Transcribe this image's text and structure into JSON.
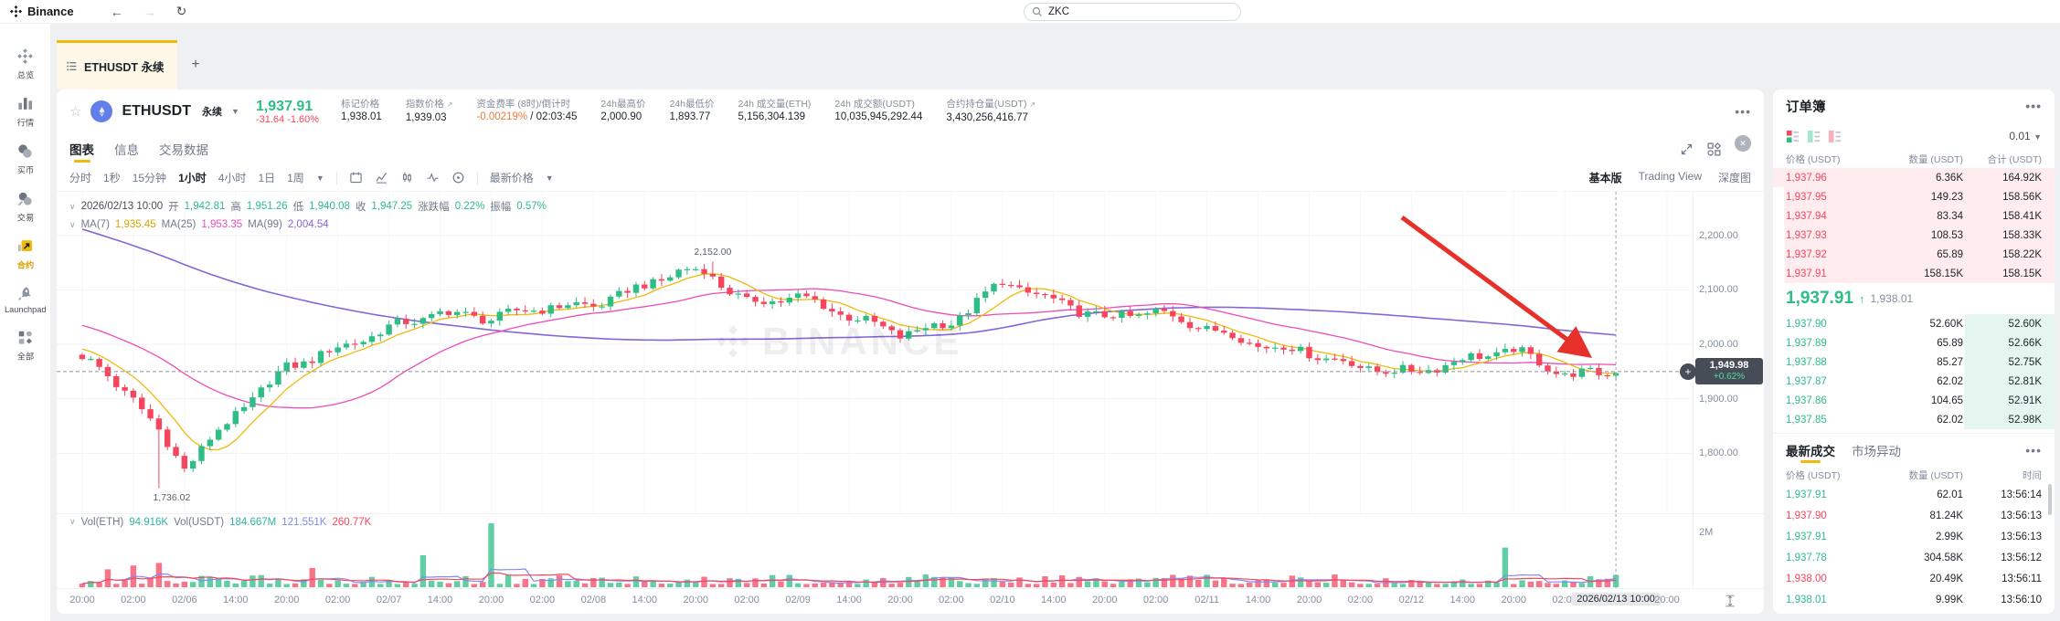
{
  "topbar": {
    "brand": "Binance",
    "search_value": "ZKC"
  },
  "sidebar": {
    "items": [
      {
        "label": "总览"
      },
      {
        "label": "行情"
      },
      {
        "label": "买币"
      },
      {
        "label": "交易"
      },
      {
        "label": "合约"
      },
      {
        "label": "Launchpad"
      },
      {
        "label": "全部"
      }
    ]
  },
  "tabstrip": {
    "active_tab": "ETHUSDT 永续",
    "add_label": "+"
  },
  "instrument": {
    "symbol": "ETHUSDT",
    "type_badge": "永续",
    "last_price": "1,937.91",
    "change": "-31.64 -1.60%",
    "stats": [
      {
        "label": "标记价格",
        "value": "1,938.01"
      },
      {
        "label": "指数价格",
        "value": "1,939.03",
        "link": "↗"
      },
      {
        "label": "资金费率 (8时)/倒计时",
        "value": "-0.00219%",
        "value2": " / 02:03:45"
      },
      {
        "label": "24h最高价",
        "value": "2,000.90"
      },
      {
        "label": "24h最低价",
        "value": "1,893.77"
      },
      {
        "label": "24h 成交量(ETH)",
        "value": "5,156,304.139"
      },
      {
        "label": "24h 成交额(USDT)",
        "value": "10,035,945,292.44"
      },
      {
        "label": "合约持仓量(USDT)",
        "value": "3,430,256,416.77",
        "link": "↗"
      }
    ]
  },
  "chart_tabs": {
    "tabs": [
      "图表",
      "信息",
      "交易数据"
    ],
    "view_tabs": [
      "基本版",
      "Trading View",
      "深度图"
    ]
  },
  "toolbar": {
    "intervals": [
      "分时",
      "1秒",
      "15分钟",
      "1小时",
      "4小时",
      "1日",
      "1周"
    ],
    "price_mode": "最新价格"
  },
  "legend": {
    "datetime": "2026/02/13 10:00",
    "o_label": "开",
    "o": "1,942.81",
    "h_label": "高",
    "h": "1,951.26",
    "l_label": "低",
    "l": "1,940.08",
    "c_label": "收",
    "c": "1,947.25",
    "chg_label": "涨跌幅",
    "chg": "0.22%",
    "amp_label": "振幅",
    "amp": "0.57%",
    "ma7_label": "MA(7)",
    "ma7": "1,935.45",
    "ma25_label": "MA(25)",
    "ma25": "1,953.35",
    "ma99_label": "MA(99)",
    "ma99": "2,004.54"
  },
  "volume_legend": {
    "vol_eth_label": "Vol(ETH)",
    "vol_eth": "94.916K",
    "vol_usdt_label": "Vol(USDT)",
    "vol_usdt": "184.667M",
    "ma1": "121.551K",
    "ma2": "260.77K"
  },
  "chart_data": {
    "type": "candlestick",
    "timeframe": "1小时",
    "watermark": "BINANCE",
    "x_labels": [
      "20:00",
      "02:00",
      "02/06",
      "14:00",
      "20:00",
      "02:00",
      "02/07",
      "14:00",
      "20:00",
      "02:00",
      "02/08",
      "14:00",
      "20:00",
      "02:00",
      "02/09",
      "14:00",
      "20:00",
      "02:00",
      "02/10",
      "14:00",
      "20:00",
      "02:00",
      "02/11",
      "14:00",
      "20:00",
      "02:00",
      "02/12",
      "14:00",
      "20:00",
      "02:00",
      "2026/02/13 10:00",
      "20:00"
    ],
    "current_label_index": 30,
    "anchors": [
      1978,
      1902,
      1775,
      1872,
      1958,
      1992,
      2030,
      2058,
      2048,
      2068,
      2072,
      2108,
      2148,
      2075,
      2088,
      2052,
      2018,
      2040,
      2115,
      2078,
      2048,
      2060,
      2030,
      2000,
      1985,
      1958,
      1948,
      1972,
      1990,
      1944,
      1947.25
    ],
    "last_close": 1947.25,
    "y_ticks": [
      {
        "label": "2,200.00",
        "value": 2200
      },
      {
        "label": "2,100.00",
        "value": 2100
      },
      {
        "label": "2,000.00",
        "value": 2000
      },
      {
        "label": "1,900.00",
        "value": 1900
      },
      {
        "label": "1,800.00",
        "value": 1800
      }
    ],
    "y_range": [
      1690,
      2280
    ],
    "vol_axis_label": "2M",
    "high_annotation": {
      "label": "2,152.00",
      "value": 2152,
      "candle": 74
    },
    "low_annotation": {
      "label": "1,736.02",
      "value": 1736.02,
      "candle": 9
    },
    "marker": {
      "price": "1,949.98",
      "change": "+0.62%",
      "value": 1949.98
    },
    "vol_spikes": {
      "3": 0.28,
      "6": 0.34,
      "9": 0.38,
      "27": 0.3,
      "40": 0.5,
      "48": 1.0,
      "100": 0.16,
      "130": 0.18,
      "167": 0.62
    },
    "colors": {
      "up": "#2EBD85",
      "down": "#F6465D",
      "ma7": "#F0B90B",
      "ma25": "#EC4CB7",
      "ma99": "#8466D6",
      "volma1": "#7E8CEF",
      "volma2": "#F6465D",
      "arrow": "#E8302A"
    }
  },
  "orderbook": {
    "title": "订单簿",
    "tick": "0.01",
    "cols": [
      "价格 (USDT)",
      "数量 (USDT)",
      "合计 (USDT)"
    ],
    "asks": [
      [
        "1,937.96",
        "6.36K",
        "164.92K"
      ],
      [
        "1,937.95",
        "149.23",
        "158.56K"
      ],
      [
        "1,937.94",
        "83.34",
        "158.41K"
      ],
      [
        "1,937.93",
        "108.53",
        "158.33K"
      ],
      [
        "1,937.92",
        "65.89",
        "158.22K"
      ],
      [
        "1,937.91",
        "158.15K",
        "158.15K"
      ]
    ],
    "mid": {
      "price": "1,937.91",
      "dir": "↑",
      "mark": "1,938.01"
    },
    "bids": [
      [
        "1,937.90",
        "52.60K",
        "52.60K"
      ],
      [
        "1,937.89",
        "65.89",
        "52.66K"
      ],
      [
        "1,937.88",
        "85.27",
        "52.75K"
      ],
      [
        "1,937.87",
        "62.02",
        "52.81K"
      ],
      [
        "1,937.86",
        "104.65",
        "52.91K"
      ],
      [
        "1,937.85",
        "62.02",
        "52.98K"
      ]
    ]
  },
  "trades": {
    "tabs": [
      "最新成交",
      "市场异动"
    ],
    "cols": [
      "价格 (USDT)",
      "数量 (USDT)",
      "时间"
    ],
    "rows": [
      {
        "price": "1,937.91",
        "side": "up",
        "qty": "62.01",
        "time": "13:56:14"
      },
      {
        "price": "1,937.90",
        "side": "down",
        "qty": "81.24K",
        "time": "13:56:13"
      },
      {
        "price": "1,937.91",
        "side": "up",
        "qty": "2.99K",
        "time": "13:56:13"
      },
      {
        "price": "1,937.78",
        "side": "up",
        "qty": "304.58K",
        "time": "13:56:12"
      },
      {
        "price": "1,938.00",
        "side": "down",
        "qty": "20.49K",
        "time": "13:56:11"
      },
      {
        "price": "1,938.01",
        "side": "up",
        "qty": "9.99K",
        "time": "13:56:10"
      }
    ]
  }
}
